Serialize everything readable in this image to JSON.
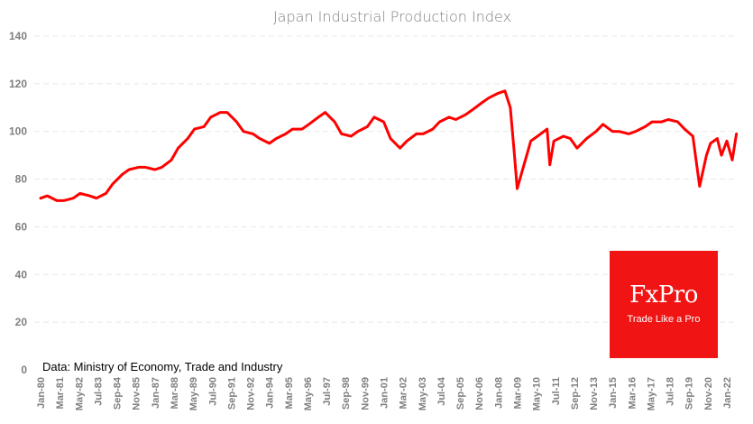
{
  "chart_data": {
    "type": "line",
    "title": "Japan Industrial Production Index",
    "xlabel": "",
    "ylabel": "",
    "ylim": [
      0,
      140
    ],
    "yticks": [
      0,
      20,
      40,
      60,
      80,
      100,
      120,
      140
    ],
    "grid": true,
    "legend": "none",
    "xtick_labels": [
      "Jan-80",
      "Mar-81",
      "May-82",
      "Jul-83",
      "Sep-84",
      "Nov-85",
      "Jan-87",
      "Mar-88",
      "May-89",
      "Jul-90",
      "Sep-91",
      "Nov-92",
      "Jan-94",
      "Mar-95",
      "May-96",
      "Jul-97",
      "Sep-98",
      "Nov-99",
      "Jan-01",
      "Mar-02",
      "May-03",
      "Jul-04",
      "Sep-05",
      "Nov-06",
      "Jan-08",
      "Mar-09",
      "May-10",
      "Jul-11",
      "Sep-12",
      "Nov-13",
      "Jan-15",
      "Mar-16",
      "May-17",
      "Jul-18",
      "Sep-19",
      "Nov-20",
      "Jan-22"
    ],
    "series": [
      {
        "name": "Industrial Production Index",
        "color": "#ff0000",
        "x": [
          "1980-01",
          "1980-06",
          "1981-01",
          "1981-06",
          "1982-01",
          "1982-06",
          "1983-01",
          "1983-06",
          "1984-01",
          "1984-06",
          "1985-01",
          "1985-06",
          "1986-01",
          "1986-06",
          "1987-01",
          "1987-06",
          "1988-01",
          "1988-06",
          "1989-01",
          "1989-06",
          "1990-01",
          "1990-06",
          "1991-01",
          "1991-06",
          "1992-01",
          "1992-06",
          "1993-01",
          "1993-06",
          "1994-01",
          "1994-06",
          "1995-01",
          "1995-06",
          "1996-01",
          "1996-06",
          "1997-01",
          "1997-06",
          "1998-01",
          "1998-06",
          "1999-01",
          "1999-06",
          "2000-01",
          "2000-06",
          "2001-01",
          "2001-06",
          "2002-01",
          "2002-06",
          "2003-01",
          "2003-06",
          "2004-01",
          "2004-06",
          "2005-01",
          "2005-06",
          "2006-01",
          "2006-06",
          "2007-01",
          "2007-06",
          "2008-01",
          "2008-06",
          "2008-10",
          "2009-01",
          "2009-03",
          "2009-06",
          "2010-01",
          "2010-06",
          "2011-01",
          "2011-03",
          "2011-06",
          "2012-01",
          "2012-06",
          "2012-11",
          "2013-06",
          "2014-01",
          "2014-06",
          "2015-01",
          "2015-06",
          "2016-01",
          "2016-06",
          "2017-01",
          "2017-06",
          "2018-01",
          "2018-06",
          "2019-01",
          "2019-06",
          "2019-12",
          "2020-05",
          "2020-10",
          "2021-01",
          "2021-06",
          "2021-09",
          "2022-01",
          "2022-05",
          "2022-08"
        ],
        "values": [
          72,
          73,
          71,
          71,
          72,
          74,
          73,
          72,
          74,
          78,
          82,
          84,
          85,
          85,
          84,
          85,
          88,
          93,
          97,
          101,
          102,
          106,
          108,
          108,
          104,
          100,
          99,
          97,
          95,
          97,
          99,
          101,
          101,
          103,
          106,
          108,
          104,
          99,
          98,
          100,
          102,
          106,
          104,
          97,
          93,
          96,
          99,
          99,
          101,
          104,
          106,
          105,
          107,
          109,
          112,
          114,
          116,
          117,
          110,
          90,
          76,
          82,
          96,
          98,
          101,
          86,
          96,
          98,
          97,
          93,
          97,
          100,
          103,
          100,
          100,
          99,
          100,
          102,
          104,
          104,
          105,
          104,
          101,
          98,
          77,
          90,
          95,
          97,
          90,
          96,
          88,
          99
        ]
      }
    ]
  },
  "source_note": "Data: Ministry of Economy, Trade and Industry",
  "logo": {
    "name": "FxPro",
    "tagline": "Trade Like a Pro",
    "color": "#f01414"
  }
}
